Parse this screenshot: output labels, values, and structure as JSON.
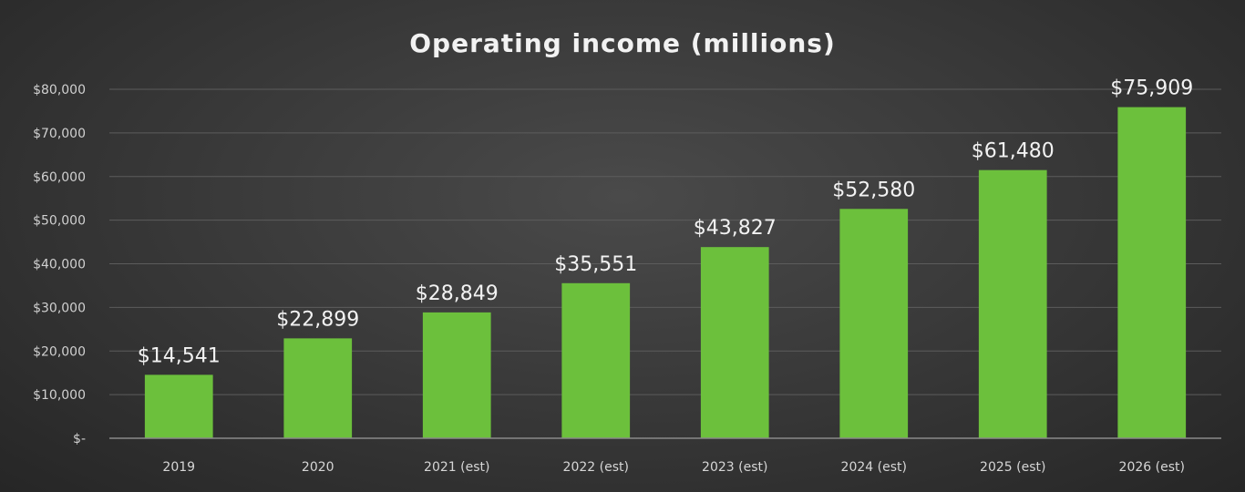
{
  "chart_data": {
    "type": "bar",
    "title": "Operating income (millions)",
    "xlabel": "",
    "ylabel": "",
    "categories": [
      "2019",
      "2020",
      "2021 (est)",
      "2022 (est)",
      "2023 (est)",
      "2024 (est)",
      "2025 (est)",
      "2026 (est)"
    ],
    "values": [
      14541,
      22899,
      28849,
      35551,
      43827,
      52580,
      61480,
      75909
    ],
    "value_labels": [
      "$14,541",
      "$22,899",
      "$28,849",
      "$35,551",
      "$43,827",
      "$52,580",
      "$61,480",
      "$75,909"
    ],
    "ylim": [
      0,
      80000
    ],
    "yticks": [
      0,
      10000,
      20000,
      30000,
      40000,
      50000,
      60000,
      70000,
      80000
    ],
    "ytick_labels": [
      "$-",
      "$10,000",
      "$20,000",
      "$30,000",
      "$40,000",
      "$50,000",
      "$60,000",
      "$70,000",
      "$80,000"
    ],
    "grid": true,
    "legend": "none",
    "colors": {
      "bar": "#6cc03c",
      "background": "#3a3a3a",
      "text": "#f2f2f2"
    }
  }
}
